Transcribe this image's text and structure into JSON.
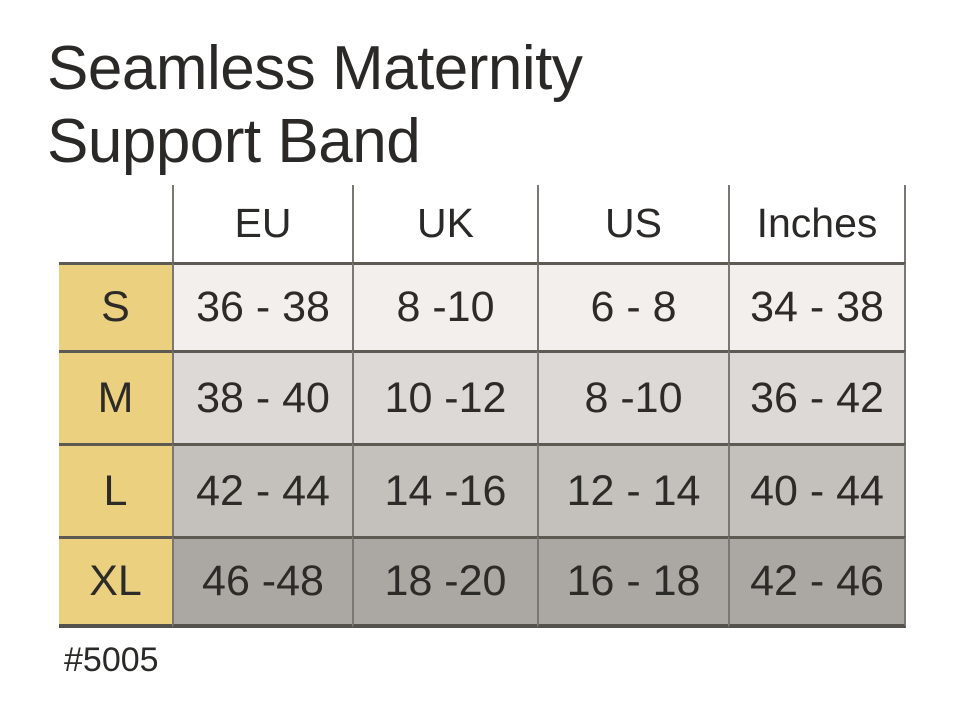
{
  "page": {
    "title_line1": "Seamless Maternity",
    "title_line2": "Support Band",
    "product_code": "#5005"
  },
  "colors": {
    "background": "#ffffff",
    "title_text": "#2a2927",
    "cell_text": "#2d2b28",
    "size_column_yellow": "#ebd080",
    "row_s_bg": "#f2efec",
    "row_m_bg": "#ddd9d6",
    "row_l_bg": "#c4c0bc",
    "row_xl_bg": "#aba7a3",
    "horizontal_line": "#5d5a54",
    "vertical_line": "#7b7873"
  },
  "chart_data": {
    "type": "table",
    "title": "Seamless Maternity Support Band",
    "subtitle": "#5005",
    "column_headers": [
      "",
      "EU",
      "UK",
      "US",
      "Inches"
    ],
    "row_headers": [
      "S",
      "M",
      "L",
      "XL"
    ],
    "rows": [
      {
        "size": "S",
        "eu": "36 - 38",
        "uk": "8 -10",
        "us": "6 - 8",
        "inches": "34 - 38"
      },
      {
        "size": "M",
        "eu": "38 - 40",
        "uk": "10 -12",
        "us": "8 -10",
        "inches": "36 - 42"
      },
      {
        "size": "L",
        "eu": "42 - 44",
        "uk": "14 -16",
        "us": "12 - 14",
        "inches": "40 - 44"
      },
      {
        "size": "XL",
        "eu": "46 -48",
        "uk": "18 -20",
        "us": "16 - 18",
        "inches": "42 - 46"
      }
    ],
    "layout": "size chart grid; leftmost size column highlighted yellow; data rows shade progressively darker gray from S to XL"
  }
}
